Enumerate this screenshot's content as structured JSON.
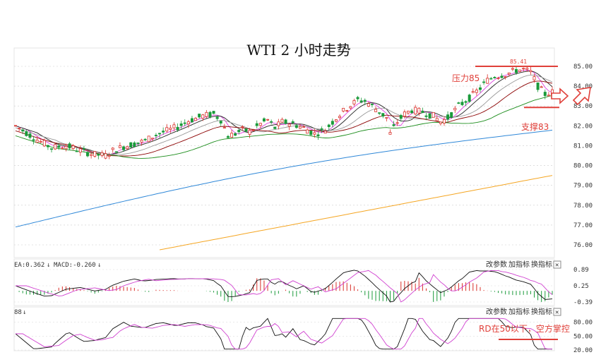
{
  "chart_data": {
    "type": "candlestick",
    "title": "WTI 2 小时走势",
    "y_ticks": [
      "85.00",
      "84.00",
      "83.00",
      "82.00",
      "81.00",
      "80.00",
      "79.00",
      "78.00",
      "77.00",
      "76.00"
    ],
    "ylim": [
      75.6,
      85.5
    ],
    "annotations": {
      "high_label": "85.41",
      "resistance_label": "压力85",
      "resistance_level": 85.0,
      "support_label": "支撑83",
      "support_level": 83.0
    },
    "candles_count": 150,
    "price_path": [
      [
        0,
        82.0
      ],
      [
        6,
        81.3
      ],
      [
        10,
        80.9
      ],
      [
        14,
        81.0
      ],
      [
        18,
        80.75
      ],
      [
        22,
        80.55
      ],
      [
        25,
        80.5
      ],
      [
        27,
        80.75
      ],
      [
        30,
        80.95
      ],
      [
        33,
        81.1
      ],
      [
        36,
        81.25
      ],
      [
        39,
        81.55
      ],
      [
        42,
        81.75
      ],
      [
        45,
        81.95
      ],
      [
        48,
        82.25
      ],
      [
        52,
        82.5
      ],
      [
        55,
        82.6
      ],
      [
        57,
        82.3
      ],
      [
        59,
        81.5
      ],
      [
        61,
        81.6
      ],
      [
        63,
        81.8
      ],
      [
        65,
        81.7
      ],
      [
        68,
        82.1
      ],
      [
        70,
        82.3
      ],
      [
        72,
        81.9
      ],
      [
        74,
        82.2
      ],
      [
        77,
        82.1
      ],
      [
        80,
        81.9
      ],
      [
        83,
        81.6
      ],
      [
        86,
        81.8
      ],
      [
        89,
        82.4
      ],
      [
        92,
        82.9
      ],
      [
        95,
        83.3
      ],
      [
        97,
        83.25
      ],
      [
        99,
        83.0
      ],
      [
        101,
        82.7
      ],
      [
        103,
        82.4
      ],
      [
        104,
        81.6
      ],
      [
        106,
        82.2
      ],
      [
        108,
        82.6
      ],
      [
        110,
        82.8
      ],
      [
        113,
        82.7
      ],
      [
        116,
        82.5
      ],
      [
        118,
        82.2
      ],
      [
        120,
        82.4
      ],
      [
        123,
        83.0
      ],
      [
        126,
        83.4
      ],
      [
        129,
        83.9
      ],
      [
        131,
        84.3
      ],
      [
        133,
        84.5
      ],
      [
        136,
        84.6
      ],
      [
        139,
        84.8
      ],
      [
        141,
        84.85
      ],
      [
        143,
        84.7
      ],
      [
        145,
        84.0
      ],
      [
        147,
        83.6
      ],
      [
        149,
        83.7
      ]
    ],
    "ma_lines": [
      {
        "name": "MA5",
        "color": "#e040e0",
        "offset": 0.0,
        "lag": 3
      },
      {
        "name": "MA10",
        "color": "#222222",
        "offset": 0.0,
        "lag": 6
      },
      {
        "name": "MA20",
        "color": "#999999",
        "offset": -0.1,
        "lag": 11
      },
      {
        "name": "MA30",
        "color": "#8b0000",
        "offset": -0.25,
        "lag": 16
      },
      {
        "name": "MA60",
        "color": "#1a8c1a",
        "offset": -0.5,
        "lag": 28
      }
    ],
    "ma_blue": {
      "color": "#2f88d8",
      "start": 76.9,
      "end": 82.3
    },
    "ma_orange": {
      "color": "#f5a623",
      "x_start": 0.27,
      "start": 75.75,
      "end": 79.5
    },
    "macd": {
      "dea_label": "EA:0.362",
      "macd_label": "MACD:-0.260",
      "ticks": [
        "0.89",
        "0.25",
        "-0.39"
      ],
      "range": [
        -0.39,
        0.89
      ]
    },
    "rsi": {
      "label": "88",
      "ticks": [
        "80.00",
        "50.00",
        "20.00"
      ],
      "range": [
        20,
        90
      ],
      "annotation": "RD在50以下，空方掌控"
    },
    "menu": {
      "params": "改参数",
      "add": "加指标",
      "switch": "换指标",
      "close": "✕"
    }
  }
}
